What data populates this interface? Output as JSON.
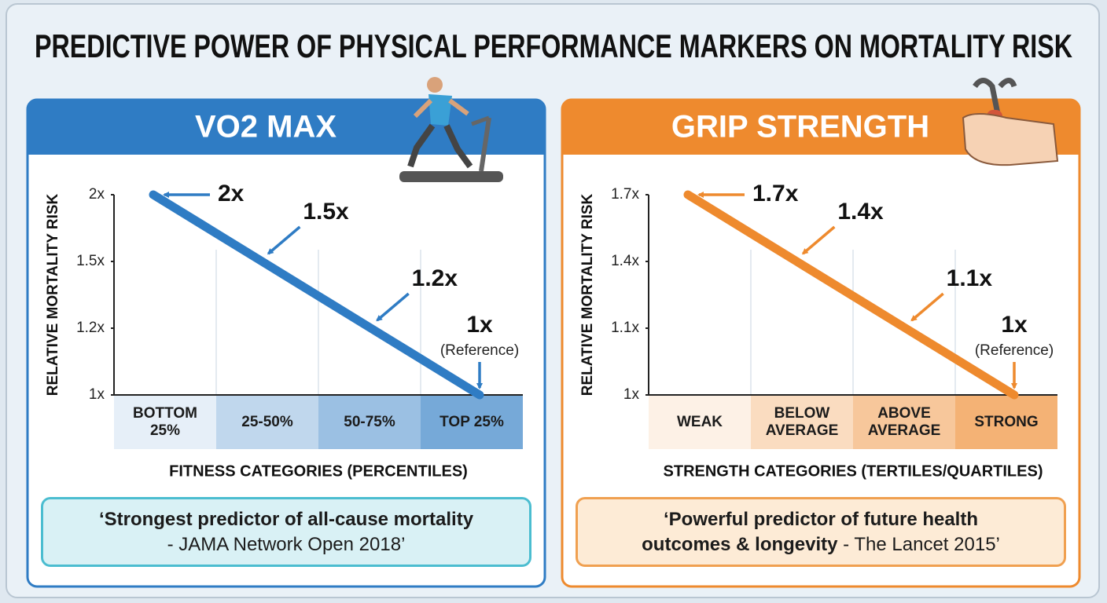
{
  "title": "PREDICTIVE POWER OF PHYSICAL PERFORMANCE MARKERS ON MORTALITY RISK",
  "chart_data": [
    {
      "type": "line",
      "title": "VO2 MAX",
      "y_label": "RELATIVE MORTALITY RISK",
      "x_label": "FITNESS CATEGORIES (PERCENTILES)",
      "categories": [
        "BOTTOM 25%",
        "25-50%",
        "50-75%",
        "TOP 25%"
      ],
      "values": [
        2,
        1.5,
        1.2,
        1
      ],
      "value_labels": [
        "2x",
        "1.5x",
        "1.2x",
        "1x"
      ],
      "annotation": "(Reference)",
      "color": "#2f7cc4",
      "ylim": [
        1,
        2
      ],
      "yticks": [
        {
          "value": 1,
          "label": "1x"
        },
        {
          "value": 1.2,
          "label": "1.2x"
        },
        {
          "value": 1.5,
          "label": "1.5x"
        },
        {
          "value": 2,
          "label": "2x"
        }
      ],
      "quote": "‘Strongest predictor of all-cause mortality",
      "source": " - JAMA Network Open 2018’"
    },
    {
      "type": "line",
      "title": "GRIP STRENGTH",
      "y_label": "RELATIVE MORTALITY RISK",
      "x_label": "STRENGTH CATEGORIES (TERTILES/QUARTILES)",
      "categories": [
        "WEAK",
        "BELOW AVERAGE",
        "ABOVE AVERAGE",
        "STRONG"
      ],
      "values": [
        1.7,
        1.4,
        1.1,
        1
      ],
      "value_labels": [
        "1.7x",
        "1.4x",
        "1.1x",
        "1x"
      ],
      "annotation": "(Reference)",
      "color": "#ee8a2e",
      "ylim": [
        1,
        1.7
      ],
      "yticks": [
        {
          "value": 1,
          "label": "1x"
        },
        {
          "value": 1.1,
          "label": "1.1x"
        },
        {
          "value": 1.4,
          "label": "1.4x"
        },
        {
          "value": 1.7,
          "label": "1.7x"
        }
      ],
      "quote": "‘Powerful predictor of future health outcomes & longevity",
      "source": " - The Lancet 2015’"
    }
  ]
}
